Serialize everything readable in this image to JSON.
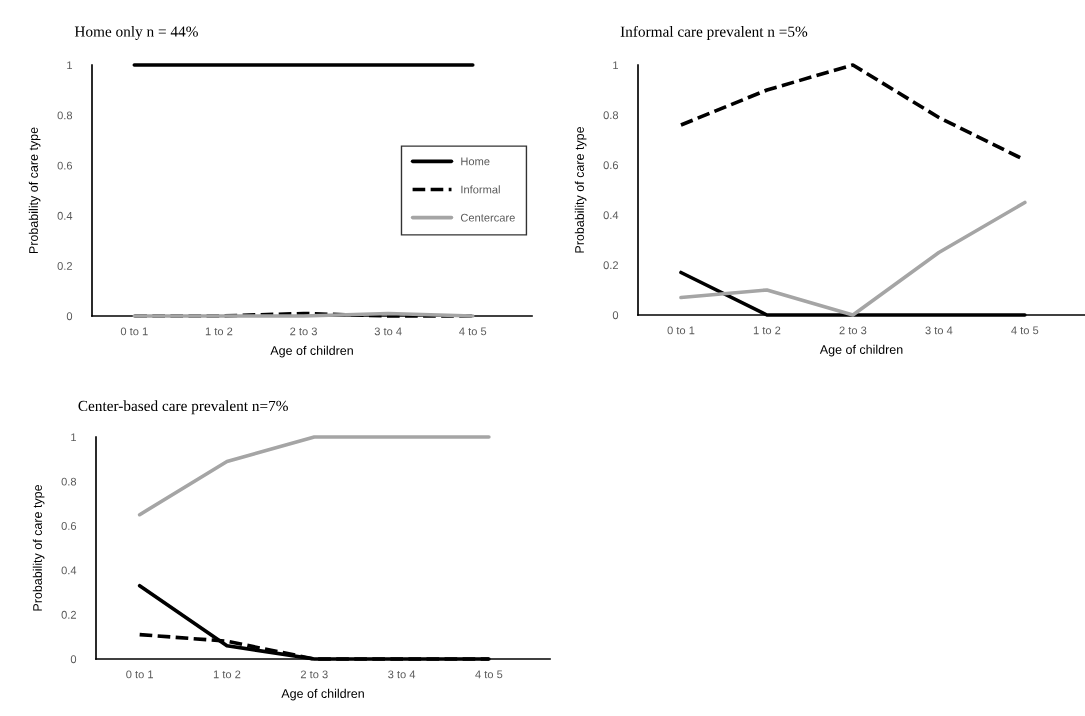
{
  "chart_data": [
    {
      "type": "line",
      "title": "Home only n = 44%",
      "xlabel": "Age of children",
      "ylabel": "Probability of care type",
      "categories": [
        "0 to 1",
        "1 to 2",
        "2 to 3",
        "3 to 4",
        "4 to 5"
      ],
      "ylim": [
        0,
        1
      ],
      "yticks": [
        0,
        0.2,
        0.4,
        0.6,
        0.8,
        1
      ],
      "grid": false,
      "legend": "right",
      "marker": "none",
      "series": [
        {
          "name": "Home",
          "color": "#000000",
          "line_style": "solid",
          "values": [
            1,
            1,
            1,
            1,
            1
          ]
        },
        {
          "name": "Informal",
          "color": "#000000",
          "line_style": "dashed",
          "values": [
            0,
            0,
            0.01,
            0,
            0
          ]
        },
        {
          "name": "Centercare",
          "color": "#a5a5a5",
          "line_style": "solid",
          "values": [
            0,
            0,
            0,
            0.01,
            0
          ]
        }
      ]
    },
    {
      "type": "line",
      "title": "Informal care prevalent n =5%",
      "xlabel": "Age of children",
      "ylabel": "Probability of care type",
      "categories": [
        "0 to 1",
        "1 to 2",
        "2 to 3",
        "3 to 4",
        "4 to 5"
      ],
      "ylim": [
        0,
        1
      ],
      "yticks": [
        0,
        0.2,
        0.4,
        0.6,
        0.8,
        1
      ],
      "grid": false,
      "marker": "none",
      "series": [
        {
          "color": "#000000",
          "line_style": "solid",
          "values": [
            0.17,
            0,
            0,
            0,
            0
          ]
        },
        {
          "color": "#000000",
          "line_style": "dashed",
          "values": [
            0.76,
            0.9,
            1,
            0.79,
            0.62
          ]
        },
        {
          "color": "#a5a5a5",
          "line_style": "solid",
          "values": [
            0.07,
            0.1,
            0,
            0.25,
            0.45
          ]
        }
      ]
    },
    {
      "type": "line",
      "title": "Center-based care prevalent n=7%",
      "xlabel": "Age of children",
      "ylabel": "Probability of care type",
      "categories": [
        "0 to 1",
        "1 to 2",
        "2 to 3",
        "3 to 4",
        "4 to 5"
      ],
      "ylim": [
        0,
        1
      ],
      "yticks": [
        0,
        0.2,
        0.4,
        0.6,
        0.8,
        1
      ],
      "grid": false,
      "marker": "none",
      "series": [
        {
          "color": "#000000",
          "line_style": "solid",
          "values": [
            0.33,
            0.06,
            0,
            0,
            0
          ]
        },
        {
          "color": "#000000",
          "line_style": "dashed",
          "values": [
            0.11,
            0.08,
            0,
            0,
            0
          ]
        },
        {
          "color": "#a5a5a5",
          "line_style": "solid",
          "values": [
            0.65,
            0.89,
            1,
            1,
            1
          ]
        }
      ]
    }
  ]
}
